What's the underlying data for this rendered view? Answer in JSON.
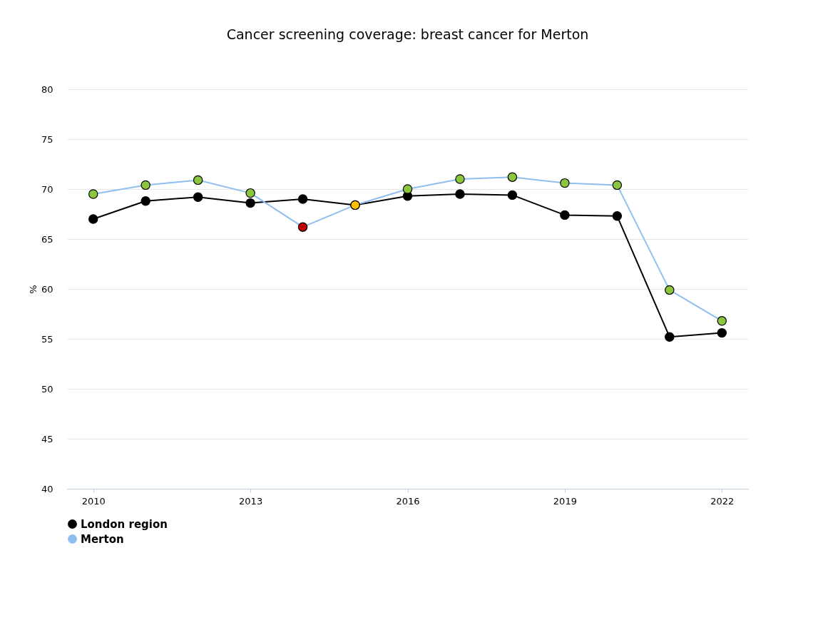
{
  "chart_data": {
    "type": "line",
    "title": "Cancer screening coverage: breast cancer for Merton",
    "ylabel": "%",
    "x": [
      2010,
      2011,
      2012,
      2013,
      2014,
      2015,
      2016,
      2017,
      2018,
      2019,
      2020,
      2021,
      2022
    ],
    "xlim": [
      2009.5,
      2022.5
    ],
    "xticks": [
      2010,
      2013,
      2016,
      2019,
      2022
    ],
    "ylim": [
      40,
      80
    ],
    "yticks": [
      40,
      45,
      50,
      55,
      60,
      65,
      70,
      75,
      80
    ],
    "grid": "y",
    "legend": "bottom",
    "marker": "circle",
    "line_style": "solid",
    "series": [
      {
        "name": "London region",
        "color": "#000000",
        "values": [
          67.0,
          68.8,
          69.2,
          68.6,
          69.0,
          68.4,
          69.3,
          69.5,
          69.4,
          67.4,
          67.3,
          55.2,
          55.6
        ]
      },
      {
        "name": "Merton",
        "color": "#8fbfef",
        "values": [
          69.5,
          70.4,
          70.9,
          69.6,
          66.2,
          68.4,
          70.0,
          71.0,
          71.2,
          70.6,
          70.4,
          59.9,
          56.8
        ],
        "colors": [
          "#8cc63f",
          "#8cc63f",
          "#8cc63f",
          "#8cc63f",
          "#c00000",
          "#ffc000",
          "#8cc63f",
          "#8cc63f",
          "#8cc63f",
          "#8cc63f",
          "#8cc63f",
          "#8cc63f",
          "#8cc63f"
        ]
      }
    ]
  }
}
